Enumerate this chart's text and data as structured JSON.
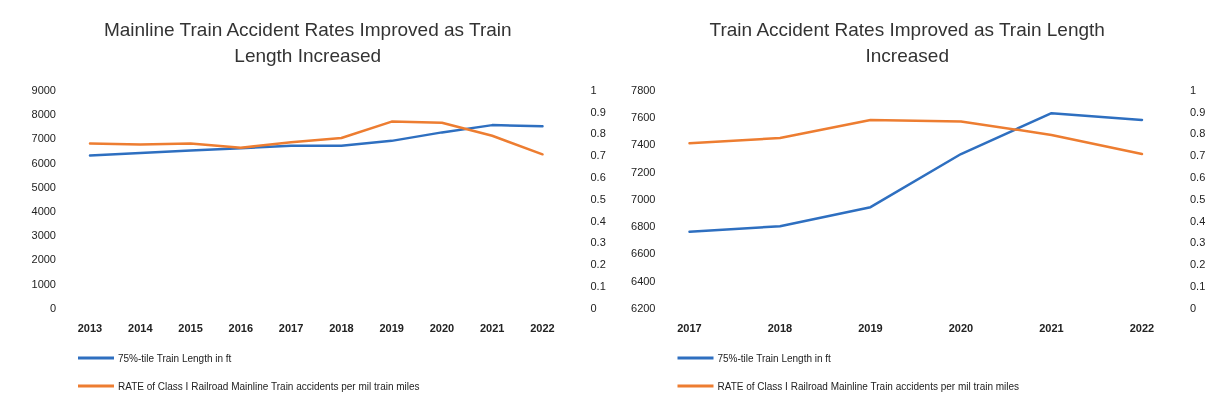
{
  "chart_data": [
    {
      "type": "line",
      "title": "Mainline Train Accident Rates Improved as Train Length Increased",
      "categories": [
        "2013",
        "2014",
        "2015",
        "2016",
        "2017",
        "2018",
        "2019",
        "2020",
        "2021",
        "2022"
      ],
      "ylim": [
        0,
        9000
      ],
      "yticks": [
        0,
        1000,
        2000,
        3000,
        4000,
        5000,
        6000,
        7000,
        8000,
        9000
      ],
      "y2lim": [
        0,
        1
      ],
      "y2ticks": [
        0,
        0.1,
        0.2,
        0.3,
        0.4,
        0.5,
        0.6,
        0.7,
        0.8,
        0.9,
        1
      ],
      "grid": false,
      "legend": "bottom",
      "series": [
        {
          "name": "75%-tile Train Length in ft",
          "color": "#2e6fc0",
          "values": [
            6300,
            6400,
            6500,
            6600,
            6700,
            6700,
            6900,
            7250,
            7550,
            7500
          ]
        },
        {
          "name": "RATE of Class I Railroad Mainline Train accidents per mil train miles",
          "color": "#ed7d31",
          "axis": "y2",
          "values": [
            0.755,
            0.75,
            0.755,
            0.735,
            0.76,
            0.78,
            0.855,
            0.85,
            0.79,
            0.705
          ]
        }
      ]
    },
    {
      "type": "line",
      "title": "Train Accident Rates Improved as Train Length Increased",
      "categories": [
        "2017",
        "2018",
        "2019",
        "2020",
        "2021",
        "2022"
      ],
      "ylim": [
        6200,
        7800
      ],
      "yticks": [
        6200,
        6400,
        6600,
        6800,
        7000,
        7200,
        7400,
        7600,
        7800
      ],
      "y2lim": [
        0,
        1
      ],
      "y2ticks": [
        0,
        0.1,
        0.2,
        0.3,
        0.4,
        0.5,
        0.6,
        0.7,
        0.8,
        0.9,
        1
      ],
      "grid": false,
      "legend": "bottom",
      "series": [
        {
          "name": "75%-tile Train Length in ft",
          "color": "#2e6fc0",
          "values": [
            6760,
            6800,
            6940,
            7330,
            7630,
            7580
          ]
        },
        {
          "name": "RATE of Class I Railroad Mainline Train accidents per mil train miles",
          "color": "#ed7d31",
          "axis": "y2",
          "values": [
            0.756,
            0.78,
            0.862,
            0.856,
            0.794,
            0.706
          ]
        }
      ]
    }
  ]
}
